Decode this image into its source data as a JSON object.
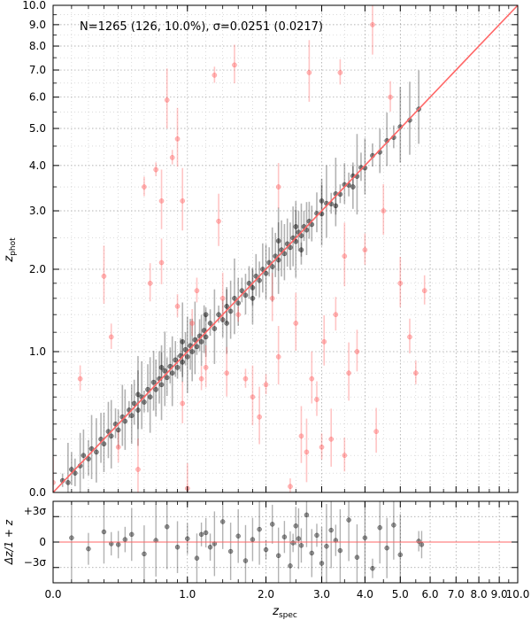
{
  "chart_data": [
    {
      "type": "scatter",
      "title": "",
      "annotation": "N=1265 (126, 10.0%), σ=0.0251 (0.0217)",
      "xlabel": "z",
      "xlabel_sub": "spec",
      "ylabel": "z",
      "ylabel_sub": "phot",
      "scale": "log(1+z)",
      "xlim": [
        0.0,
        10.0
      ],
      "ylim": [
        0.0,
        10.0
      ],
      "x_tick_labels": [
        "0.0",
        "1.0",
        "2.0",
        "3.0",
        "4.0",
        "5.0",
        "6.0",
        "7.0",
        "8.0",
        "9.0",
        "10.0"
      ],
      "y_tick_labels": [
        "0.0",
        "1.0",
        "2.0",
        "3.0",
        "4.0",
        "5.0",
        "6.0",
        "7.0",
        "8.0",
        "9.0",
        "10.0"
      ],
      "grid": true,
      "one_to_one_line": true,
      "colors": {
        "inlier": "#000000",
        "outlier": "#ff4d4d",
        "line": "#ff6666",
        "grid": "#999999"
      },
      "series": [
        {
          "role": "inliers",
          "points": [
            [
              0.05,
              0.06
            ],
            [
              0.08,
              0.05
            ],
            [
              0.1,
              0.12
            ],
            [
              0.12,
              0.1
            ],
            [
              0.15,
              0.14
            ],
            [
              0.17,
              0.2
            ],
            [
              0.2,
              0.18
            ],
            [
              0.22,
              0.24
            ],
            [
              0.25,
              0.22
            ],
            [
              0.28,
              0.3
            ],
            [
              0.3,
              0.27
            ],
            [
              0.33,
              0.35
            ],
            [
              0.35,
              0.32
            ],
            [
              0.38,
              0.4
            ],
            [
              0.4,
              0.36
            ],
            [
              0.43,
              0.45
            ],
            [
              0.45,
              0.42
            ],
            [
              0.48,
              0.5
            ],
            [
              0.5,
              0.46
            ],
            [
              0.52,
              0.55
            ],
            [
              0.55,
              0.5
            ],
            [
              0.58,
              0.6
            ],
            [
              0.6,
              0.56
            ],
            [
              0.63,
              0.66
            ],
            [
              0.65,
              0.6
            ],
            [
              0.68,
              0.72
            ],
            [
              0.7,
              0.66
            ],
            [
              0.73,
              0.75
            ],
            [
              0.75,
              0.7
            ],
            [
              0.78,
              0.82
            ],
            [
              0.8,
              0.76
            ],
            [
              0.83,
              0.86
            ],
            [
              0.85,
              0.8
            ],
            [
              0.88,
              0.92
            ],
            [
              0.9,
              0.85
            ],
            [
              0.93,
              0.96
            ],
            [
              0.95,
              0.9
            ],
            [
              0.98,
              1.02
            ],
            [
              1.0,
              0.95
            ],
            [
              1.03,
              1.06
            ],
            [
              1.05,
              1.0
            ],
            [
              1.08,
              1.12
            ],
            [
              1.1,
              1.05
            ],
            [
              1.13,
              1.16
            ],
            [
              1.15,
              1.1
            ],
            [
              1.18,
              1.22
            ],
            [
              1.2,
              1.15
            ],
            [
              1.25,
              1.3
            ],
            [
              1.3,
              1.24
            ],
            [
              1.35,
              1.4
            ],
            [
              1.4,
              1.34
            ],
            [
              1.45,
              1.5
            ],
            [
              1.5,
              1.44
            ],
            [
              1.55,
              1.6
            ],
            [
              1.6,
              1.54
            ],
            [
              1.65,
              1.7
            ],
            [
              1.7,
              1.64
            ],
            [
              1.75,
              1.8
            ],
            [
              1.8,
              1.74
            ],
            [
              1.85,
              1.9
            ],
            [
              1.9,
              1.84
            ],
            [
              1.95,
              2.0
            ],
            [
              2.0,
              1.94
            ],
            [
              2.05,
              2.1
            ],
            [
              2.1,
              2.04
            ],
            [
              2.15,
              2.2
            ],
            [
              2.2,
              2.14
            ],
            [
              2.25,
              2.3
            ],
            [
              2.3,
              2.24
            ],
            [
              2.35,
              2.4
            ],
            [
              2.4,
              2.34
            ],
            [
              2.45,
              2.5
            ],
            [
              2.5,
              2.44
            ],
            [
              2.55,
              2.6
            ],
            [
              2.6,
              2.54
            ],
            [
              2.65,
              2.7
            ],
            [
              2.7,
              2.64
            ],
            [
              2.75,
              2.8
            ],
            [
              2.8,
              2.74
            ],
            [
              2.9,
              2.95
            ],
            [
              3.0,
              2.94
            ],
            [
              3.1,
              3.15
            ],
            [
              3.2,
              3.14
            ],
            [
              3.3,
              3.35
            ],
            [
              3.4,
              3.34
            ],
            [
              3.5,
              3.55
            ],
            [
              3.6,
              3.54
            ],
            [
              3.7,
              3.75
            ],
            [
              3.8,
              3.74
            ],
            [
              3.9,
              3.95
            ],
            [
              4.0,
              3.94
            ],
            [
              4.2,
              4.25
            ],
            [
              4.4,
              4.34
            ],
            [
              4.6,
              4.65
            ],
            [
              4.8,
              4.74
            ],
            [
              5.0,
              5.05
            ],
            [
              5.3,
              5.25
            ],
            [
              5.6,
              5.6
            ],
            [
              0.55,
              0.62
            ],
            [
              0.95,
              1.1
            ],
            [
              1.45,
              1.3
            ],
            [
              2.5,
              2.7
            ],
            [
              2.6,
              2.3
            ],
            [
              3.0,
              3.2
            ],
            [
              3.3,
              3.1
            ],
            [
              1.2,
              1.4
            ],
            [
              1.8,
              1.6
            ],
            [
              0.75,
              0.85
            ],
            [
              2.2,
              2.45
            ],
            [
              3.7,
              3.5
            ]
          ]
        },
        {
          "role": "outliers",
          "points": [
            [
              0.0,
              0.05
            ],
            [
              0.15,
              0.75
            ],
            [
              0.3,
              1.9
            ],
            [
              0.35,
              1.15
            ],
            [
              0.4,
              0.25
            ],
            [
              0.55,
              0.12
            ],
            [
              0.6,
              3.5
            ],
            [
              0.65,
              1.8
            ],
            [
              0.7,
              3.9
            ],
            [
              0.75,
              3.2
            ],
            [
              0.75,
              2.1
            ],
            [
              0.8,
              5.9
            ],
            [
              0.85,
              4.2
            ],
            [
              0.9,
              4.7
            ],
            [
              0.9,
              1.5
            ],
            [
              0.95,
              3.2
            ],
            [
              0.95,
              0.55
            ],
            [
              1.0,
              0.02
            ],
            [
              1.05,
              1.3
            ],
            [
              1.1,
              1.7
            ],
            [
              1.15,
              0.75
            ],
            [
              1.2,
              0.85
            ],
            [
              1.3,
              6.8
            ],
            [
              1.35,
              2.8
            ],
            [
              1.4,
              1.6
            ],
            [
              1.45,
              0.8
            ],
            [
              1.55,
              7.2
            ],
            [
              1.6,
              1.4
            ],
            [
              1.7,
              0.75
            ],
            [
              1.8,
              0.6
            ],
            [
              2.0,
              0.7
            ],
            [
              2.1,
              1.6
            ],
            [
              2.2,
              0.95
            ],
            [
              2.4,
              0.03
            ],
            [
              2.5,
              1.3
            ],
            [
              2.6,
              0.32
            ],
            [
              2.7,
              0.22
            ],
            [
              2.75,
              6.9
            ],
            [
              2.8,
              0.75
            ],
            [
              2.9,
              0.58
            ],
            [
              3.0,
              0.25
            ],
            [
              3.05,
              1.1
            ],
            [
              3.2,
              0.3
            ],
            [
              3.3,
              1.4
            ],
            [
              3.4,
              6.9
            ],
            [
              3.5,
              0.2
            ],
            [
              3.6,
              0.8
            ],
            [
              3.8,
              1.0
            ],
            [
              4.0,
              2.3
            ],
            [
              4.3,
              0.35
            ],
            [
              4.5,
              3.0
            ],
            [
              4.7,
              6.0
            ],
            [
              5.0,
              1.8
            ],
            [
              5.3,
              1.15
            ],
            [
              5.5,
              0.8
            ],
            [
              5.8,
              1.7
            ],
            [
              4.2,
              9.0
            ],
            [
              3.5,
              2.2
            ],
            [
              2.2,
              3.5
            ],
            [
              1.9,
              0.45
            ]
          ]
        }
      ]
    },
    {
      "type": "scatter",
      "role": "residuals",
      "xlabel": "z",
      "xlabel_sub": "spec",
      "ylabel": "Δz/1 + z",
      "ylim_sigma": [
        -4.8,
        4.8
      ],
      "y_tick_labels": [
        "+3σ",
        "0",
        "−3σ"
      ],
      "x_tick_labels": [
        "0.0",
        "1.0",
        "2.0",
        "3.0",
        "4.0",
        "5.0",
        "6.0",
        "7.0",
        "8.0",
        "9.0",
        "10.0"
      ],
      "colors": {
        "points": "#000000",
        "zero_line": "#ff6666"
      },
      "points": [
        [
          0.1,
          0.5
        ],
        [
          0.2,
          -0.8
        ],
        [
          0.3,
          1.2
        ],
        [
          0.4,
          -0.3
        ],
        [
          0.5,
          0.9
        ],
        [
          0.6,
          -1.4
        ],
        [
          0.7,
          0.2
        ],
        [
          0.8,
          1.8
        ],
        [
          0.9,
          -0.6
        ],
        [
          1.0,
          0.4
        ],
        [
          1.1,
          -1.9
        ],
        [
          1.2,
          1.1
        ],
        [
          1.3,
          -0.2
        ],
        [
          1.4,
          2.4
        ],
        [
          1.5,
          -1.1
        ],
        [
          1.6,
          0.7
        ],
        [
          1.7,
          -2.2
        ],
        [
          1.8,
          0.3
        ],
        [
          1.9,
          1.5
        ],
        [
          2.0,
          -0.9
        ],
        [
          2.1,
          2.1
        ],
        [
          2.2,
          -1.6
        ],
        [
          2.3,
          0.6
        ],
        [
          2.4,
          -2.8
        ],
        [
          2.5,
          1.9
        ],
        [
          2.6,
          -0.4
        ],
        [
          2.7,
          3.2
        ],
        [
          2.8,
          -1.3
        ],
        [
          2.9,
          0.8
        ],
        [
          3.0,
          -2.5
        ],
        [
          3.2,
          1.4
        ],
        [
          3.4,
          -1.0
        ],
        [
          3.6,
          2.6
        ],
        [
          3.8,
          -1.8
        ],
        [
          4.0,
          0.5
        ],
        [
          4.2,
          -3.1
        ],
        [
          4.4,
          1.7
        ],
        [
          4.6,
          -0.7
        ],
        [
          4.8,
          2.0
        ],
        [
          5.0,
          -1.5
        ],
        [
          5.6,
          0.1
        ],
        [
          5.7,
          -0.3
        ],
        [
          0.35,
          -0.2
        ],
        [
          0.45,
          0.3
        ],
        [
          1.15,
          0.9
        ],
        [
          2.45,
          -0.1
        ],
        [
          2.55,
          0.4
        ],
        [
          3.1,
          -0.5
        ],
        [
          3.3,
          0.2
        ],
        [
          1.25,
          -0.6
        ]
      ]
    }
  ]
}
